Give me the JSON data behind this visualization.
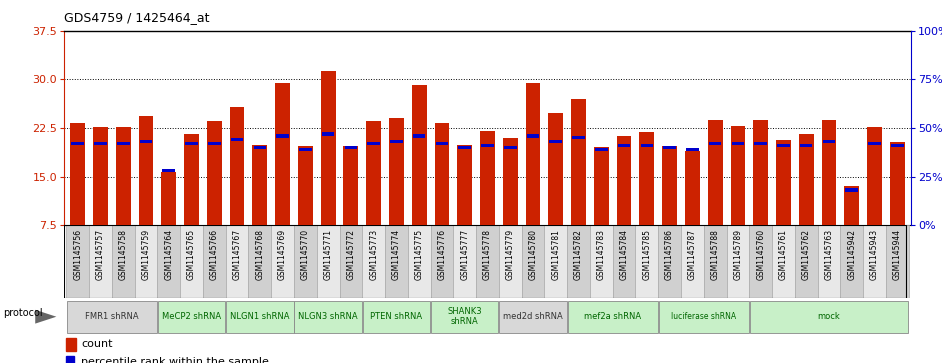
{
  "title": "GDS4759 / 1425464_at",
  "samples": [
    "GSM1145756",
    "GSM1145757",
    "GSM1145758",
    "GSM1145759",
    "GSM1145764",
    "GSM1145765",
    "GSM1145766",
    "GSM1145767",
    "GSM1145768",
    "GSM1145769",
    "GSM1145770",
    "GSM1145771",
    "GSM1145772",
    "GSM1145773",
    "GSM1145774",
    "GSM1145775",
    "GSM1145776",
    "GSM1145777",
    "GSM1145778",
    "GSM1145779",
    "GSM1145780",
    "GSM1145781",
    "GSM1145782",
    "GSM1145783",
    "GSM1145784",
    "GSM1145785",
    "GSM1145786",
    "GSM1145787",
    "GSM1145788",
    "GSM1145789",
    "GSM1145760",
    "GSM1145761",
    "GSM1145762",
    "GSM1145763",
    "GSM1145942",
    "GSM1145943",
    "GSM1145944"
  ],
  "counts": [
    23.2,
    22.6,
    22.7,
    24.4,
    15.7,
    21.6,
    23.5,
    25.7,
    19.9,
    29.5,
    19.7,
    31.3,
    19.7,
    23.6,
    24.0,
    29.2,
    23.2,
    19.9,
    22.0,
    21.0,
    29.5,
    24.8,
    26.9,
    19.6,
    21.2,
    21.8,
    19.7,
    19.0,
    23.7,
    22.8,
    23.8,
    20.6,
    21.5,
    23.7,
    13.5,
    22.6,
    20.3
  ],
  "percentiles": [
    42,
    42,
    42,
    43,
    28,
    42,
    42,
    44,
    40,
    46,
    39,
    47,
    40,
    42,
    43,
    46,
    42,
    40,
    41,
    40,
    46,
    43,
    45,
    39,
    41,
    41,
    40,
    39,
    42,
    42,
    42,
    41,
    41,
    43,
    18,
    42,
    41
  ],
  "protocols": [
    {
      "label": "FMR1 shRNA",
      "start": 0,
      "end": 4,
      "color": "#d8d8d8"
    },
    {
      "label": "MeCP2 shRNA",
      "start": 4,
      "end": 7,
      "color": "#c8f0c8"
    },
    {
      "label": "NLGN1 shRNA",
      "start": 7,
      "end": 10,
      "color": "#c8f0c8"
    },
    {
      "label": "NLGN3 shRNA",
      "start": 10,
      "end": 13,
      "color": "#c8f0c8"
    },
    {
      "label": "PTEN shRNA",
      "start": 13,
      "end": 16,
      "color": "#c8f0c8"
    },
    {
      "label": "SHANK3\nshRNA",
      "start": 16,
      "end": 19,
      "color": "#c8f0c8"
    },
    {
      "label": "med2d shRNA",
      "start": 19,
      "end": 22,
      "color": "#d8d8d8"
    },
    {
      "label": "mef2a shRNA",
      "start": 22,
      "end": 26,
      "color": "#c8f0c8"
    },
    {
      "label": "luciferase shRNA",
      "start": 26,
      "end": 30,
      "color": "#c8f0c8"
    },
    {
      "label": "mock",
      "start": 30,
      "end": 37,
      "color": "#c8f0c8"
    }
  ],
  "ylim_left": [
    7.5,
    37.5
  ],
  "yticks_left": [
    7.5,
    15.0,
    22.5,
    30.0,
    37.5
  ],
  "ylim_right": [
    0,
    100
  ],
  "yticks_right": [
    0,
    25,
    50,
    75,
    100
  ],
  "bar_color": "#cc2200",
  "percentile_color": "#0000cc",
  "bg_color": "#ffffff",
  "left_axis_color": "#cc2200",
  "right_axis_color": "#0000cc",
  "xtick_colors": [
    "#d0d0d0",
    "#e8e8e8"
  ],
  "grid_yticks": [
    15.0,
    22.5,
    30.0
  ]
}
